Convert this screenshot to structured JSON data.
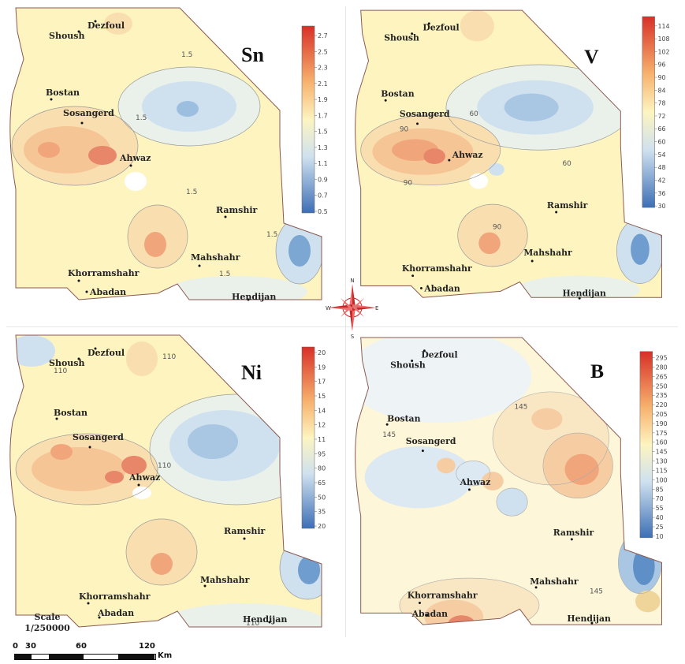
{
  "panels": [
    {
      "id": "sn",
      "title": "Sn",
      "legend": [
        "2.7",
        "2.5",
        "2.3",
        "2.1",
        "1.9",
        "1.7",
        "1.5",
        "1.3",
        "1.1",
        "0.9",
        "0.7",
        "0.5"
      ],
      "contour_labels": [
        "1.5",
        "1.5",
        "1.5",
        "1.5",
        "1.5"
      ]
    },
    {
      "id": "v",
      "title": "V",
      "legend": [
        "114",
        "108",
        "102",
        "96",
        "90",
        "84",
        "78",
        "72",
        "66",
        "60",
        "54",
        "48",
        "42",
        "36",
        "30"
      ],
      "contour_labels": [
        "60",
        "90",
        "60",
        "90",
        "90"
      ]
    },
    {
      "id": "ni",
      "title": "Ni",
      "legend": [
        "20",
        "19",
        "17",
        "15",
        "14",
        "12",
        "11",
        "95",
        "80",
        "65",
        "50",
        "35",
        "20"
      ],
      "contour_labels": [
        "110",
        "110",
        "110",
        "110"
      ]
    },
    {
      "id": "b",
      "title": "B",
      "legend": [
        "295",
        "280",
        "265",
        "250",
        "235",
        "220",
        "205",
        "190",
        "175",
        "160",
        "145",
        "130",
        "115",
        "100",
        "85",
        "70",
        "55",
        "40",
        "25",
        "10"
      ],
      "contour_labels": [
        "145",
        "145",
        "145"
      ]
    }
  ],
  "cities": {
    "dezfoul": "Dezfoul",
    "shoush": "Shoush",
    "bostan": "Bostan",
    "sosangerd": "Sosangerd",
    "ahwaz": "Ahwaz",
    "ramshir": "Ramshir",
    "mahshahr": "Mahshahr",
    "khorramshahr": "Khorramshahr",
    "abadan": "Abadan",
    "hendijan": "Hendijan"
  },
  "compass": {
    "n": "N",
    "s": "S",
    "e": "E",
    "w": "W"
  },
  "scale": {
    "label": "Scale",
    "ratio": "1/250000",
    "ticks": [
      "0",
      "30",
      "60",
      "120"
    ],
    "unit": "Km"
  },
  "colors": {
    "high": "#d73027",
    "mid": "#fdf4c0",
    "low": "#3d6fb5",
    "boundary": "#8b5a52"
  }
}
